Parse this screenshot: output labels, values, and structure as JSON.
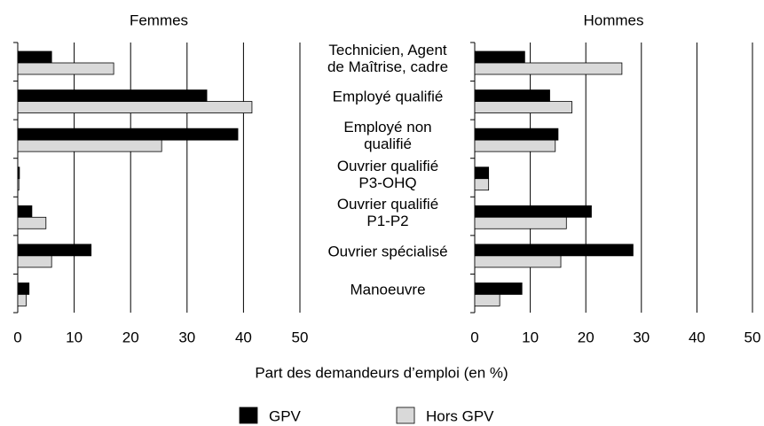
{
  "chart_data": {
    "type": "bar",
    "orientation": "horizontal",
    "categories": [
      "Technicien, Agent\nde Maîtrise, cadre",
      "Employé qualifié",
      "Employé non\nqualifié",
      "Ouvrier qualifié\nP3-OHQ",
      "Ouvrier qualifié\nP1-P2",
      "Ouvrier spécialisé",
      "Manoeuvre"
    ],
    "xlabel": "Part des demandeurs d’emploi (en %)",
    "grid": true,
    "panels": [
      {
        "title": "Femmes",
        "xlim": [
          0,
          50
        ],
        "xticks": [
          0,
          10,
          20,
          30,
          40,
          50
        ]
      },
      {
        "title": "Hommes",
        "xlim": [
          0,
          50
        ],
        "xticks": [
          0,
          10,
          20,
          30,
          40,
          50
        ]
      }
    ],
    "series": [
      {
        "name": "GPV",
        "color": "#000000",
        "values": [
          [
            6,
            33.5,
            39,
            0.3,
            2.5,
            13,
            2
          ],
          [
            9,
            13.5,
            15,
            2.5,
            21,
            28.5,
            8.5
          ]
        ]
      },
      {
        "name": "Hors GPV",
        "color": "#d9d9d9",
        "values": [
          [
            17,
            41.5,
            25.5,
            0.2,
            5,
            6,
            1.5
          ],
          [
            26.5,
            17.5,
            14.5,
            2.5,
            16.5,
            15.5,
            4.5
          ]
        ]
      }
    ]
  }
}
